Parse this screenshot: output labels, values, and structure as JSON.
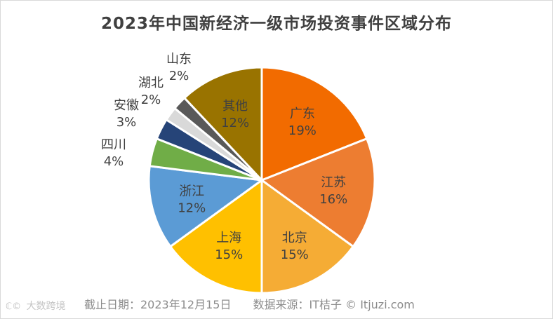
{
  "chart_data": {
    "type": "pie",
    "title": "2023年中国新经济一级市场投资事件区域分布",
    "slices": [
      {
        "label": "广东",
        "value": 19,
        "value_label": "19%",
        "color": "#F26B00",
        "label_position": "inside"
      },
      {
        "label": "江苏",
        "value": 16,
        "value_label": "16%",
        "color": "#ED7D31",
        "label_position": "inside"
      },
      {
        "label": "北京",
        "value": 15,
        "value_label": "15%",
        "color": "#F5AC35",
        "label_position": "inside"
      },
      {
        "label": "上海",
        "value": 15,
        "value_label": "15%",
        "color": "#FFC000",
        "label_position": "inside"
      },
      {
        "label": "浙江",
        "value": 12,
        "value_label": "12%",
        "color": "#5B9BD5",
        "label_position": "inside"
      },
      {
        "label": "四川",
        "value": 4,
        "value_label": "4%",
        "color": "#70AD47",
        "label_position": "outside"
      },
      {
        "label": "安徽",
        "value": 3,
        "value_label": "3%",
        "color": "#264478",
        "label_position": "outside"
      },
      {
        "label": "湖北",
        "value": 2,
        "value_label": "2%",
        "color": "#D9D9D9",
        "label_position": "outside"
      },
      {
        "label": "山东",
        "value": 2,
        "value_label": "2%",
        "color": "#595959",
        "label_position": "outside"
      },
      {
        "label": "其他",
        "value": 12,
        "value_label": "12%",
        "color": "#997300",
        "label_position": "inside"
      }
    ],
    "start_angle_deg": 0,
    "direction": "clockwise"
  },
  "footer": {
    "date": "截止日期：2023年12月15日",
    "source": "数据来源：IT桔子 © Itjuzi.com"
  },
  "watermark": {
    "icon": "ℂ©",
    "text": "大数跨境"
  }
}
